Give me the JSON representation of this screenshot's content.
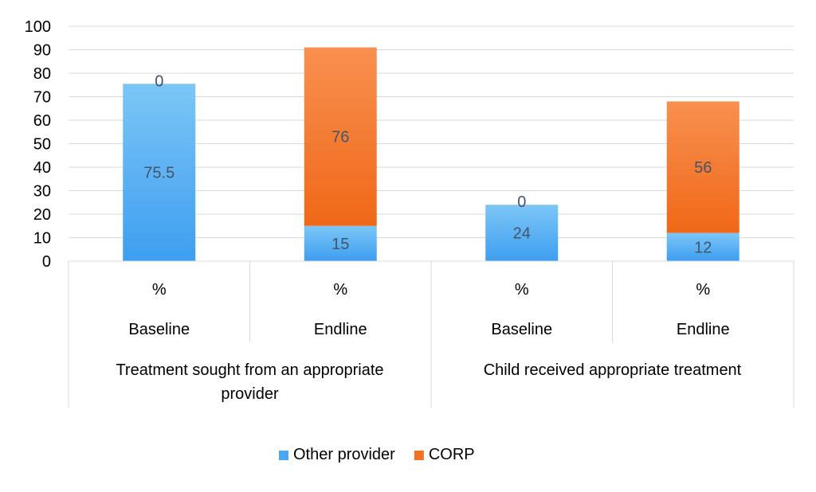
{
  "chart_data": {
    "type": "bar",
    "stacked": true,
    "categories": [
      {
        "level1": "%",
        "level2": "Baseline",
        "group": "Treatment sought from an appropriate provider"
      },
      {
        "level1": "%",
        "level2": "Endline",
        "group": "Treatment sought from an appropriate provider"
      },
      {
        "level1": "%",
        "level2": "Baseline",
        "group": "Child received appropriate treatment"
      },
      {
        "level1": "%",
        "level2": "Endline",
        "group": "Child received appropriate treatment"
      }
    ],
    "groups": [
      {
        "label_lines": [
          "Treatment sought from an appropriate",
          "provider"
        ]
      },
      {
        "label_lines": [
          "Child received appropriate treatment"
        ]
      }
    ],
    "series": [
      {
        "name": "Other provider",
        "values": [
          75.5,
          15,
          24,
          12
        ],
        "labels": [
          "75.5",
          "15",
          "24",
          "12"
        ],
        "color": "#4da6f0"
      },
      {
        "name": "CORP",
        "values": [
          0,
          76,
          0,
          56
        ],
        "labels": [
          "0",
          "76",
          "0",
          "56"
        ],
        "color": "#f07025"
      }
    ],
    "ylim": [
      0,
      100
    ],
    "yticks": [
      0,
      10,
      20,
      30,
      40,
      50,
      60,
      70,
      80,
      90,
      100
    ],
    "grid": true,
    "legend_position": "bottom",
    "title": "",
    "xlabel": "",
    "ylabel": ""
  }
}
